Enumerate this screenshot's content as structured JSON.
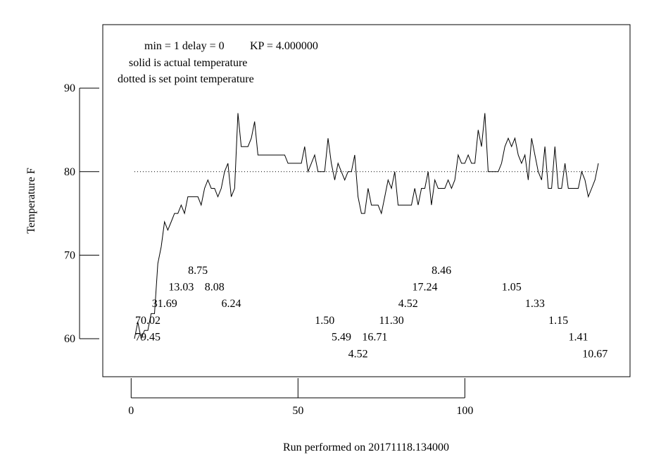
{
  "chart_data": {
    "type": "line",
    "notes": [
      "min = 1     delay = 0",
      "KP = 4.000000",
      "solid is actual temperature",
      "dotted is set point temperature"
    ],
    "xlabel": "Run performed on 20171118.134000",
    "ylabel": "Temperature F",
    "xlim": [
      -8.5,
      149.5
    ],
    "ylim": [
      55.45,
      97.6
    ],
    "xticks": [
      0,
      50,
      100
    ],
    "yticks": [
      60,
      70,
      80,
      90
    ],
    "grid": false,
    "series": [
      {
        "line_style": "solid",
        "color": "#000000",
        "x": [
          1,
          2,
          3,
          4,
          5,
          6,
          7,
          8,
          9,
          10,
          11,
          12,
          13,
          14,
          15,
          16,
          17,
          18,
          19,
          20,
          21,
          22,
          23,
          24,
          25,
          26,
          27,
          28,
          29,
          30,
          31,
          32,
          33,
          34,
          35,
          36,
          37,
          38,
          39,
          40,
          41,
          42,
          43,
          44,
          45,
          46,
          47,
          48,
          49,
          50,
          51,
          52,
          53,
          54,
          55,
          56,
          57,
          58,
          59,
          60,
          61,
          62,
          63,
          64,
          65,
          66,
          67,
          68,
          69,
          70,
          71,
          72,
          73,
          74,
          75,
          76,
          77,
          78,
          79,
          80,
          81,
          82,
          83,
          84,
          85,
          86,
          87,
          88,
          89,
          90,
          91,
          92,
          93,
          94,
          95,
          96,
          97,
          98,
          99,
          100,
          101,
          102,
          103,
          104,
          105,
          106,
          107,
          108,
          109,
          110,
          111,
          112,
          113,
          114,
          115,
          116,
          117,
          118,
          119,
          120,
          121,
          122,
          123,
          124,
          125,
          126,
          127,
          128,
          129,
          130,
          131,
          132,
          133,
          134,
          135,
          136,
          137,
          138,
          139,
          140
        ],
        "y": [
          60,
          62,
          60,
          61,
          61,
          63,
          63,
          69,
          71,
          74,
          73,
          74,
          75,
          75,
          76,
          75,
          77,
          77,
          77,
          77,
          76,
          78,
          79,
          78,
          78,
          77,
          78,
          80,
          81,
          77,
          78,
          87,
          83,
          83,
          83,
          84,
          86,
          82,
          82,
          82,
          82,
          82,
          82,
          82,
          82,
          82,
          81,
          81,
          81,
          81,
          81,
          83,
          80,
          81,
          82,
          80,
          80,
          80,
          84,
          81,
          79,
          81,
          80,
          79,
          80,
          80,
          82,
          77,
          75,
          75,
          78,
          76,
          76,
          76,
          75,
          77,
          79,
          78,
          80,
          76,
          76,
          76,
          76,
          76,
          78,
          76,
          78,
          78,
          80,
          76,
          79,
          78,
          78,
          78,
          79,
          78,
          79,
          82,
          81,
          81,
          82,
          81,
          81,
          85,
          83,
          87,
          80,
          80,
          80,
          80,
          81,
          83,
          84,
          83,
          84,
          82,
          81,
          82,
          79,
          84,
          82,
          80,
          79,
          83,
          78,
          78,
          83,
          78,
          78,
          81,
          78,
          78,
          78,
          78,
          80,
          79,
          77,
          78,
          79,
          81
        ]
      },
      {
        "line_style": "dotted",
        "color": "#000000",
        "x": [
          1,
          140
        ],
        "y": [
          80,
          80
        ]
      }
    ],
    "annotations": [
      {
        "text": "8.75",
        "x": 20.0,
        "y": 68.2
      },
      {
        "text": "13.03",
        "x": 15.0,
        "y": 66.2
      },
      {
        "text": "8.08",
        "x": 25.0,
        "y": 66.2
      },
      {
        "text": "31.69",
        "x": 10.0,
        "y": 64.2
      },
      {
        "text": "6.24",
        "x": 30.0,
        "y": 64.2
      },
      {
        "text": "70.02",
        "x": 5.0,
        "y": 62.2
      },
      {
        "text": "79.45",
        "x": 5.0,
        "y": 60.2
      },
      {
        "text": "1.50",
        "x": 58.0,
        "y": 62.2
      },
      {
        "text": "5.49",
        "x": 63.0,
        "y": 60.2
      },
      {
        "text": "4.52",
        "x": 68.0,
        "y": 58.2
      },
      {
        "text": "16.71",
        "x": 73.0,
        "y": 60.2
      },
      {
        "text": "11.30",
        "x": 78.0,
        "y": 62.2
      },
      {
        "text": "4.52",
        "x": 83.0,
        "y": 64.2
      },
      {
        "text": "17.24",
        "x": 88.0,
        "y": 66.2
      },
      {
        "text": "8.46",
        "x": 93.0,
        "y": 68.2
      },
      {
        "text": "1.05",
        "x": 114.0,
        "y": 66.2
      },
      {
        "text": "1.33",
        "x": 121.0,
        "y": 64.2
      },
      {
        "text": "1.15",
        "x": 128.0,
        "y": 62.2
      },
      {
        "text": "1.41",
        "x": 134.0,
        "y": 60.2
      },
      {
        "text": "10.67",
        "x": 139.0,
        "y": 58.2
      }
    ]
  }
}
